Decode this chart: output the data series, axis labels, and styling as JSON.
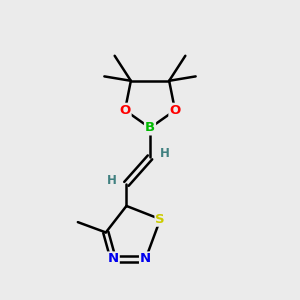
{
  "background_color": "#ebebeb",
  "bond_color": "#000000",
  "atom_colors": {
    "O": "#ff0000",
    "B": "#00bb00",
    "S": "#cccc00",
    "N": "#0000ee",
    "C": "#000000",
    "H": "#408080"
  },
  "figsize": [
    3.0,
    3.0
  ],
  "dpi": 100
}
